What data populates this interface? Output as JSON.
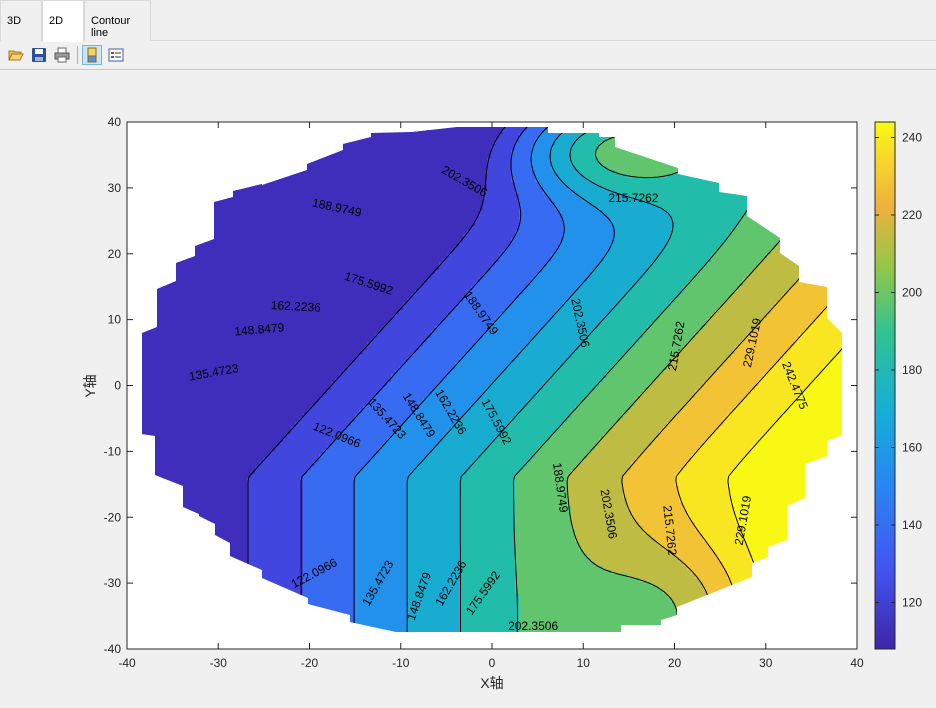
{
  "tabs": [
    {
      "label": "3D",
      "active": false
    },
    {
      "label": "2D",
      "active": true
    },
    {
      "label": "Contour line",
      "active": false
    }
  ],
  "toolbar": {
    "buttons": [
      {
        "icon": "open-folder-icon",
        "pressed": false
      },
      {
        "icon": "save-icon",
        "pressed": false
      },
      {
        "icon": "print-icon",
        "pressed": false
      },
      {
        "icon": "colorbar-toggle-icon",
        "pressed": true
      },
      {
        "icon": "legend-toggle-icon",
        "pressed": false
      }
    ]
  },
  "chart_data": {
    "type": "contour",
    "xlabel": "X轴",
    "ylabel": "Y轴",
    "xlim": [
      -40,
      40
    ],
    "ylim": [
      -40,
      40
    ],
    "xticks": [
      -40,
      -30,
      -20,
      -10,
      0,
      10,
      20,
      30,
      40
    ],
    "yticks": [
      -40,
      -30,
      -20,
      -10,
      0,
      10,
      20,
      30,
      40
    ],
    "colorbar": {
      "range": [
        108,
        244
      ],
      "ticks": [
        120,
        140,
        160,
        180,
        200,
        220,
        240
      ]
    },
    "levels": [
      122.0966,
      135.4723,
      148.8479,
      162.2236,
      175.5992,
      188.9749,
      202.3506,
      215.7262,
      229.1019,
      242.4775
    ],
    "labels": [
      {
        "text": "122.0966",
        "x": -17,
        "y": -7.5,
        "angle": 22
      },
      {
        "text": "122.0966",
        "x": -19.5,
        "y": -28.5,
        "angle": -28
      },
      {
        "text": "135.4723",
        "x": -30.5,
        "y": 2,
        "angle": -10
      },
      {
        "text": "135.4723",
        "x": -11.5,
        "y": -5,
        "angle": 48
      },
      {
        "text": "135.4723",
        "x": -12.5,
        "y": -30,
        "angle": -60
      },
      {
        "text": "148.8479",
        "x": -25.5,
        "y": 8.5,
        "angle": -5
      },
      {
        "text": "148.8479",
        "x": -8,
        "y": -4.5,
        "angle": 58
      },
      {
        "text": "148.8479",
        "x": -8,
        "y": -32,
        "angle": -70
      },
      {
        "text": "162.2236",
        "x": -21.5,
        "y": 12,
        "angle": 3
      },
      {
        "text": "162.2236",
        "x": -4.5,
        "y": -4,
        "angle": 60
      },
      {
        "text": "162.2236",
        "x": -4.5,
        "y": -30,
        "angle": -60
      },
      {
        "text": "175.5992",
        "x": -13.5,
        "y": 15.5,
        "angle": 18
      },
      {
        "text": "175.5992",
        "x": 0.5,
        "y": -5.5,
        "angle": 62
      },
      {
        "text": "175.5992",
        "x": -1,
        "y": -31.5,
        "angle": -55
      },
      {
        "text": "188.9749",
        "x": -17,
        "y": 27,
        "angle": 12
      },
      {
        "text": "188.9749",
        "x": -1.2,
        "y": 11,
        "angle": 55
      },
      {
        "text": "188.9749",
        "x": 7.5,
        "y": -15.5,
        "angle": 82
      },
      {
        "text": "202.3506",
        "x": -3,
        "y": 31,
        "angle": 30
      },
      {
        "text": "202.3506",
        "x": 9.7,
        "y": 9.5,
        "angle": 78
      },
      {
        "text": "202.3506",
        "x": 12.8,
        "y": -19.5,
        "angle": 80
      },
      {
        "text": "202.3506",
        "x": 4.5,
        "y": -36.5,
        "angle": 0
      },
      {
        "text": "215.7262",
        "x": 15.5,
        "y": 28.5,
        "angle": 0
      },
      {
        "text": "215.7262",
        "x": 20.2,
        "y": 6,
        "angle": -80
      },
      {
        "text": "215.7262",
        "x": 19.5,
        "y": -22,
        "angle": 84
      },
      {
        "text": "229.1019",
        "x": 28.5,
        "y": 6.5,
        "angle": -78
      },
      {
        "text": "229.1019",
        "x": 27.5,
        "y": -20.5,
        "angle": -80
      },
      {
        "text": "242.4775",
        "x": 33.2,
        "y": 0,
        "angle": 68
      }
    ]
  }
}
